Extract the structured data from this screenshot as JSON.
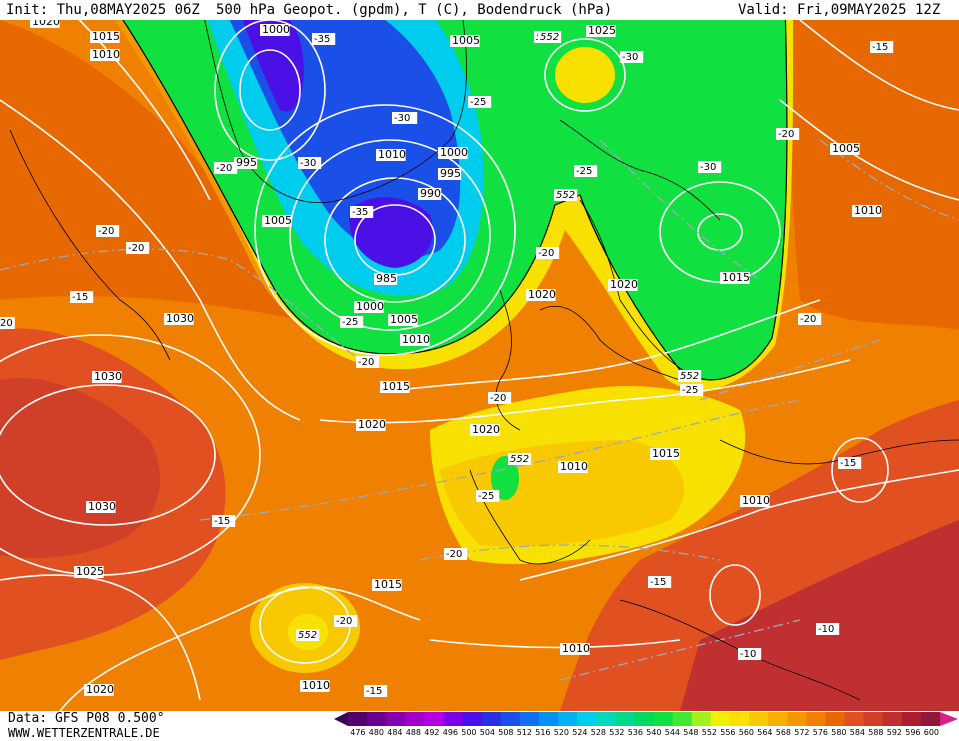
{
  "header": {
    "init": "Init: Thu,08MAY2025 06Z",
    "title": "500 hPa Geopot. (gpdm), T (C), Bodendruck (hPa)",
    "valid": "Valid: Fri,09MAY2025 12Z"
  },
  "footer": {
    "data": "Data: GFS P08 0.500°",
    "site": "WWW.WETTERZENTRALE.DE"
  },
  "legend": {
    "ticks": [
      "476",
      "480",
      "484",
      "488",
      "492",
      "496",
      "500",
      "504",
      "508",
      "512",
      "516",
      "520",
      "524",
      "528",
      "532",
      "536",
      "540",
      "544",
      "548",
      "552",
      "556",
      "560",
      "564",
      "568",
      "572",
      "576",
      "580",
      "584",
      "588",
      "592",
      "596",
      "600"
    ],
    "colors": [
      "#3a0050",
      "#52006e",
      "#6b0090",
      "#8500ae",
      "#a000c8",
      "#b400e0",
      "#7a00e6",
      "#4a10e6",
      "#2a30e0",
      "#1a50e8",
      "#1070f0",
      "#0890f0",
      "#00b0f0",
      "#00ccee",
      "#00d8c0",
      "#00d890",
      "#00d860",
      "#10e040",
      "#40e830",
      "#a0f020",
      "#f0f000",
      "#f8e000",
      "#f8c800",
      "#f8b000",
      "#f49800",
      "#f08000",
      "#e86800",
      "#e05020",
      "#d04028",
      "#c03030",
      "#a82030",
      "#901838",
      "#d8208c"
    ]
  },
  "map_labels": {
    "pressure": [
      "1020",
      "1015",
      "1010",
      "1000",
      "995",
      "1005",
      "1010",
      "1000",
      "995",
      "990",
      "985",
      "1000",
      "1005",
      "1010",
      "1005",
      "1025",
      "1005",
      "1010",
      "1030",
      "1030",
      "1030",
      "1025",
      "1020",
      "1015",
      "1015",
      "1020",
      "1020",
      "1020",
      "1010",
      "1010",
      "1015",
      "1010",
      "1010",
      "1020",
      "1015"
    ],
    "temperature": [
      "-35",
      "-35",
      "-30",
      "-35",
      "-25",
      "-20",
      "-30",
      "-20",
      "-20",
      "-25",
      "-20",
      "-15",
      "-25",
      "-20",
      "-30",
      "-30",
      "-20",
      "-15",
      "-20",
      "-25",
      "-20",
      "-25",
      "-20",
      "-15",
      "-20",
      "-15",
      "-15",
      "-10",
      "-10",
      "-15",
      "20"
    ],
    "geopot": [
      "552",
      "552",
      "552",
      "552",
      "552",
      "552"
    ]
  }
}
